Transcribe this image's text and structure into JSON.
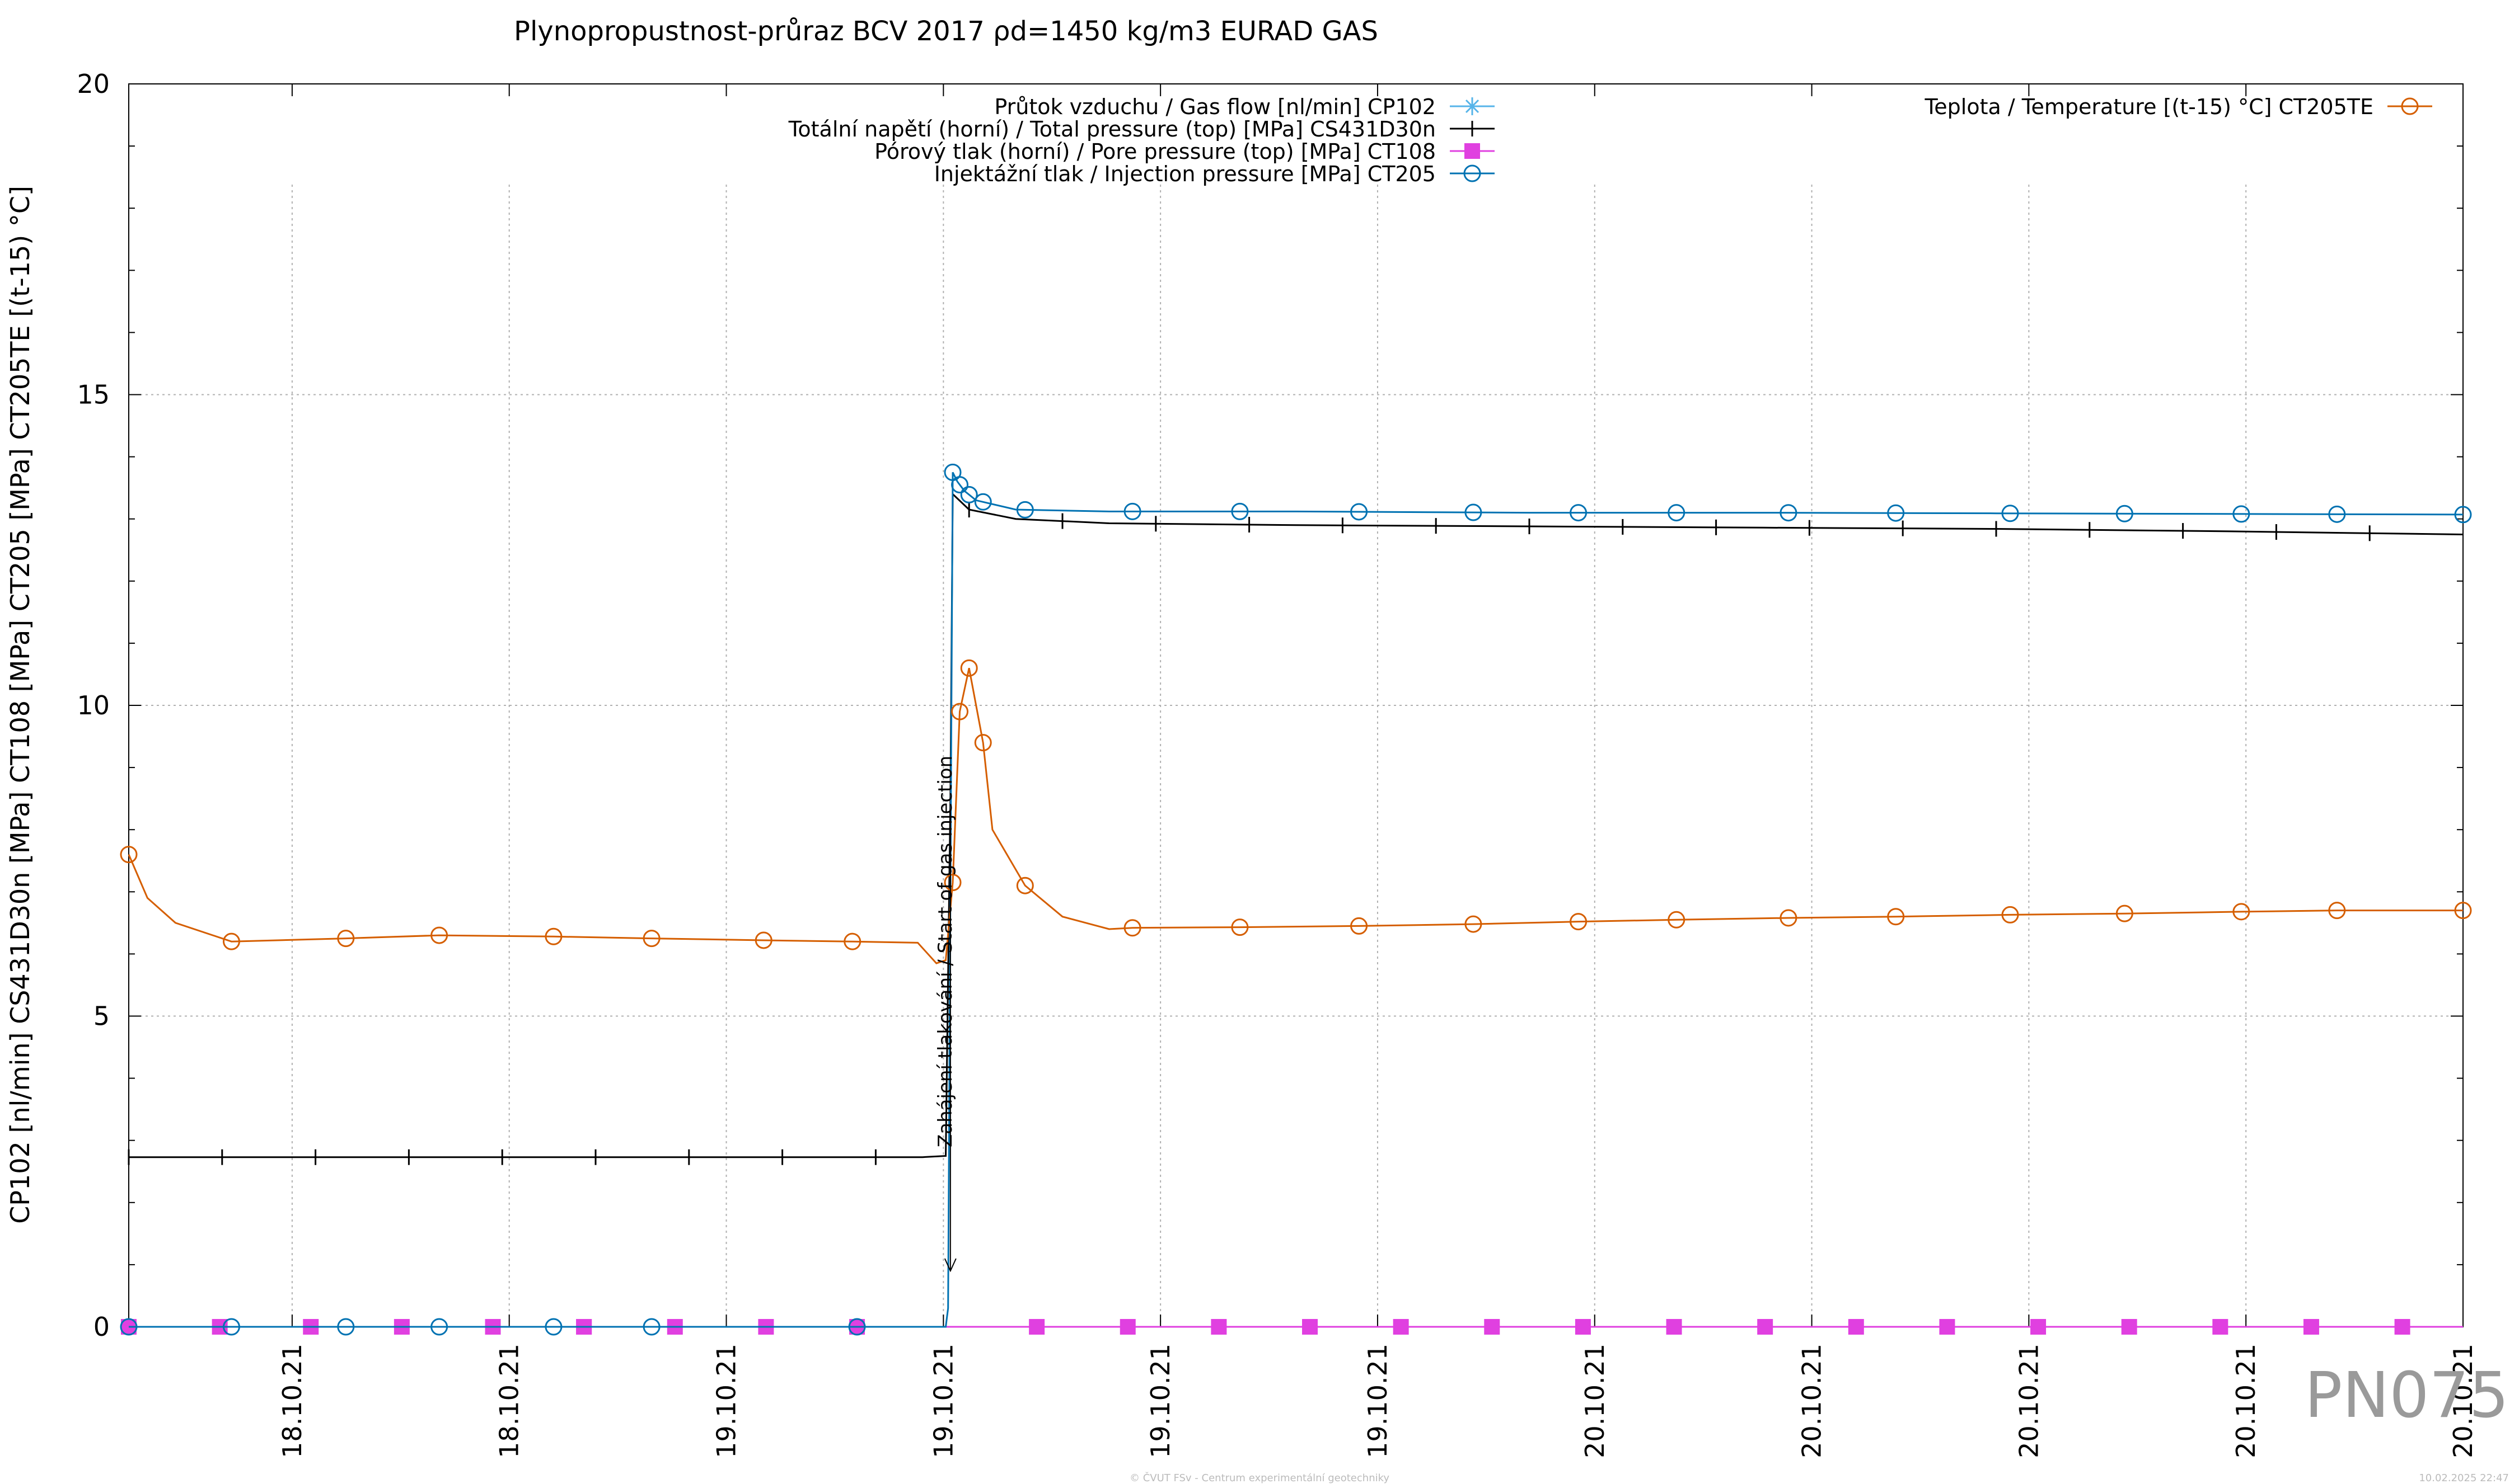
{
  "chart_data": {
    "type": "line",
    "title": "Plynopropustnost-průraz BCV 2017 ρd=1450 kg/m3 EURAD GAS",
    "ylabel": "CP102 [nl/min] CS431D30n [MPa] CT108 [MPa] CT205 [MPa] CT205TE [(t-15) °C]",
    "ylim": [
      0,
      20
    ],
    "yticks": [
      0,
      5,
      10,
      15,
      20
    ],
    "xlim": [
      0,
      100
    ],
    "xticks": [
      7,
      16.3,
      25.6,
      34.9,
      44.2,
      53.5,
      62.8,
      72.1,
      81.4,
      90.7,
      100
    ],
    "xtick_labels": [
      "18.10.21",
      "18.10.21",
      "19.10.21",
      "19.10.21",
      "19.10.21",
      "19.10.21",
      "20.10.21",
      "20.10.21",
      "20.10.21",
      "20.10.21",
      "20.10.21"
    ],
    "grid": true,
    "legend_position": "top",
    "annotation": {
      "text": "Zahájení tlakování / Start of gas injection",
      "x": 35.2,
      "y_from": 8.3,
      "y_to": 0.9
    },
    "series": [
      {
        "name": "Průtok vzduchu / Gas flow [nl/min] CP102",
        "color": "#56b4e9",
        "marker": "star",
        "x": [
          0,
          35.0,
          35.1,
          35.3,
          35.5,
          100
        ],
        "y": [
          0,
          0,
          0,
          0,
          0,
          0
        ],
        "marker_x": []
      },
      {
        "name": "Totální napětí (horní) / Total pressure (top) [MPa] CS431D30n",
        "color": "#000000",
        "marker": "tick",
        "x": [
          0,
          10,
          20,
          30,
          34.0,
          35.0,
          35.2,
          35.3,
          36.0,
          38.0,
          42.0,
          50.0,
          60.0,
          70.0,
          80.0,
          90.0,
          100
        ],
        "y": [
          2.73,
          2.73,
          2.73,
          2.73,
          2.73,
          2.75,
          8.5,
          13.4,
          13.15,
          13.0,
          12.93,
          12.9,
          12.88,
          12.86,
          12.84,
          12.8,
          12.75
        ],
        "marker_x": [
          0,
          4,
          8,
          12,
          16,
          20,
          24,
          28,
          32,
          36,
          40,
          44,
          48,
          52,
          56,
          60,
          64,
          68,
          72,
          76,
          80,
          84,
          88,
          92,
          96
        ]
      },
      {
        "name": "Pórový tlak (horní) / Pore pressure (top) [MPa] CT108",
        "color": "#e040e0",
        "marker": "square",
        "x": [
          0,
          100
        ],
        "y": [
          0,
          0
        ],
        "marker_x": [
          0,
          3.9,
          7.8,
          11.7,
          15.6,
          19.5,
          19.5,
          23.4,
          27.3,
          31.2,
          38.9,
          42.8,
          46.7,
          50.6,
          54.5,
          58.4,
          62.3,
          66.2,
          70.1,
          74.0,
          77.9,
          81.8,
          85.7,
          89.6,
          93.5,
          97.4
        ]
      },
      {
        "name": "Injektážní tlak / Injection pressure [MPa] CT205",
        "color": "#0072b2",
        "marker": "circle",
        "x": [
          0,
          35.0,
          35.1,
          35.3,
          35.5,
          35.8,
          36.3,
          38.0,
          42.0,
          50.0,
          60.0,
          70.0,
          80.0,
          90.0,
          100
        ],
        "y": [
          0,
          0,
          0.3,
          13.75,
          13.6,
          13.45,
          13.3,
          13.15,
          13.12,
          13.12,
          13.1,
          13.1,
          13.09,
          13.08,
          13.07
        ],
        "marker_x": [
          0,
          4.4,
          9.3,
          13.3,
          18.2,
          22.4,
          31.2,
          35.3,
          35.6,
          36.0,
          36.6,
          38.4,
          43.0,
          47.6,
          52.7,
          57.6,
          62.1,
          66.3,
          71.1,
          75.7,
          80.6,
          85.5,
          90.5,
          94.6,
          100
        ]
      },
      {
        "name": "Teplota / Temperature [(t-15) °C] CT205TE",
        "color": "#d55e00",
        "marker": "circle",
        "x": [
          0,
          0.8,
          2,
          4.4,
          9.3,
          13.3,
          18.2,
          22.4,
          27.2,
          31.0,
          33.8,
          34.6,
          35.0,
          35.3,
          35.6,
          36.0,
          36.6,
          37.0,
          38.4,
          40.0,
          42.0,
          43.0,
          47.6,
          52.7,
          57.6,
          62.1,
          66.3,
          71.1,
          75.7,
          80.6,
          85.5,
          90.5,
          94.6,
          100
        ],
        "y": [
          7.6,
          6.9,
          6.5,
          6.2,
          6.25,
          6.3,
          6.28,
          6.25,
          6.22,
          6.2,
          6.18,
          5.85,
          5.9,
          7.15,
          9.9,
          10.6,
          9.4,
          8.0,
          7.1,
          6.6,
          6.4,
          6.42,
          6.43,
          6.45,
          6.48,
          6.52,
          6.55,
          6.58,
          6.6,
          6.63,
          6.65,
          6.68,
          6.7,
          6.7
        ],
        "marker_x": [
          0,
          4.4,
          9.3,
          13.3,
          18.2,
          22.4,
          27.2,
          31.0,
          35.3,
          35.6,
          36.0,
          36.6,
          38.4,
          43.0,
          47.6,
          52.7,
          57.6,
          62.1,
          66.3,
          71.1,
          75.7,
          80.6,
          85.5,
          90.5,
          94.6,
          100
        ]
      }
    ]
  },
  "watermark": "PN075",
  "footer": {
    "center": "© ČVUT FSv - Centrum experimentální geotechniky",
    "right": "10.02.2025 22:47"
  }
}
